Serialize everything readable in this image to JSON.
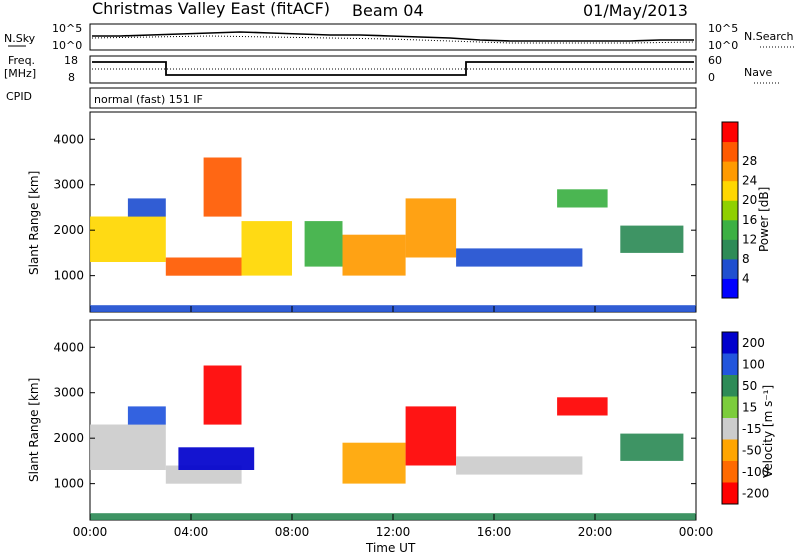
{
  "header": {
    "title": "Christmas Valley East (fitACF)",
    "beam": "Beam 04",
    "date": "01/May/2013"
  },
  "panel_labels": {
    "nsky": "N.Sky",
    "nsearch": "N.Search",
    "freq": "Freq.",
    "freq_unit": "[MHz]",
    "nave": "Nave",
    "cpid": "CPID",
    "mode": "normal (fast) 151 IF"
  },
  "noise_axis": {
    "left_top": "10^5",
    "left_bottom": "10^0",
    "right_top": "10^5",
    "right_bottom": "10^0"
  },
  "freq_axis": {
    "left_top": "18",
    "left_bottom": "8",
    "right_top": "60",
    "right_bottom": "0"
  },
  "x_axis": {
    "label": "Time UT",
    "ticks": [
      "00:00",
      "04:00",
      "08:00",
      "12:00",
      "16:00",
      "20:00",
      "00:00"
    ]
  },
  "y_axis": {
    "label": "Slant Range [km]",
    "ticks": [
      "1000",
      "2000",
      "3000",
      "4000"
    ]
  },
  "power_scale": {
    "label": "Power [dB]",
    "ticks": [
      "4",
      "8",
      "12",
      "16",
      "20",
      "24",
      "28"
    ],
    "colors": [
      "#0000ff",
      "#1f4fd0",
      "#2e8b57",
      "#3cb043",
      "#8fd000",
      "#ffd700",
      "#ff9a00",
      "#ff5a00",
      "#ff0000"
    ]
  },
  "velocity_scale": {
    "label": "Velocity [m s⁻¹]",
    "ticks": [
      "200",
      "100",
      "50",
      "15",
      "-15",
      "-50",
      "-100",
      "-200"
    ],
    "colors": [
      "#0000cc",
      "#2255dd",
      "#2e8b57",
      "#7ccd3c",
      "#cccccc",
      "#ffa500",
      "#ff6a00",
      "#ff0000"
    ]
  },
  "chart_data": [
    {
      "type": "heatmap",
      "title": "Power",
      "xlabel": "Time UT",
      "ylabel": "Slant Range [km]",
      "xlim": [
        0,
        24
      ],
      "ylim": [
        200,
        4600
      ],
      "colorbar_label": "Power [dB]",
      "colorbar_ticks": [
        4,
        8,
        12,
        16,
        20,
        24,
        28
      ],
      "regions": [
        {
          "t0": 0.0,
          "t1": 3.0,
          "r0": 1300,
          "r1": 2300,
          "value": 20
        },
        {
          "t0": 1.5,
          "t1": 3.0,
          "r0": 2300,
          "r1": 2700,
          "value": 8
        },
        {
          "t0": 3.0,
          "t1": 6.0,
          "r0": 1000,
          "r1": 1400,
          "value": 26
        },
        {
          "t0": 4.5,
          "t1": 6.0,
          "r0": 2300,
          "r1": 3600,
          "value": 27
        },
        {
          "t0": 6.0,
          "t1": 8.0,
          "r0": 1000,
          "r1": 2200,
          "value": 18
        },
        {
          "t0": 8.5,
          "t1": 10.0,
          "r0": 1200,
          "r1": 2200,
          "value": 14
        },
        {
          "t0": 10.0,
          "t1": 12.5,
          "r0": 1000,
          "r1": 1900,
          "value": 24
        },
        {
          "t0": 12.5,
          "t1": 14.5,
          "r0": 1400,
          "r1": 2700,
          "value": 22
        },
        {
          "t0": 14.5,
          "t1": 19.5,
          "r0": 1200,
          "r1": 1600,
          "value": 8
        },
        {
          "t0": 18.5,
          "t1": 20.5,
          "r0": 2500,
          "r1": 2900,
          "value": 12
        },
        {
          "t0": 21.0,
          "t1": 23.5,
          "r0": 1500,
          "r1": 2100,
          "value": 10
        },
        {
          "t0": 0.0,
          "t1": 24.0,
          "r0": 200,
          "r1": 350,
          "value": 6
        }
      ]
    },
    {
      "type": "heatmap",
      "title": "Velocity",
      "xlabel": "Time UT",
      "ylabel": "Slant Range [km]",
      "xlim": [
        0,
        24
      ],
      "ylim": [
        200,
        4600
      ],
      "colorbar_label": "Velocity [m s⁻¹]",
      "colorbar_ticks": [
        200,
        100,
        50,
        15,
        -15,
        -50,
        -100,
        -200
      ],
      "regions": [
        {
          "t0": 0.0,
          "t1": 3.0,
          "r0": 1300,
          "r1": 2300,
          "value": 0
        },
        {
          "t0": 1.5,
          "t1": 3.0,
          "r0": 2300,
          "r1": 2700,
          "value": 150
        },
        {
          "t0": 3.0,
          "t1": 6.0,
          "r0": 1000,
          "r1": 1400,
          "value": 0
        },
        {
          "t0": 3.5,
          "t1": 6.5,
          "r0": 1300,
          "r1": 1800,
          "value": 200
        },
        {
          "t0": 4.5,
          "t1": 6.0,
          "r0": 2300,
          "r1": 3600,
          "value": -200
        },
        {
          "t0": 10.0,
          "t1": 12.5,
          "r0": 1000,
          "r1": 1900,
          "value": -60
        },
        {
          "t0": 12.5,
          "t1": 14.5,
          "r0": 1400,
          "r1": 2700,
          "value": -150
        },
        {
          "t0": 14.5,
          "t1": 19.5,
          "r0": 1200,
          "r1": 1600,
          "value": 0
        },
        {
          "t0": 18.5,
          "t1": 20.5,
          "r0": 2500,
          "r1": 2900,
          "value": -200
        },
        {
          "t0": 21.0,
          "t1": 23.5,
          "r0": 1500,
          "r1": 2100,
          "value": 40
        },
        {
          "t0": 0.0,
          "t1": 24.0,
          "r0": 200,
          "r1": 350,
          "value": 40
        }
      ]
    }
  ]
}
